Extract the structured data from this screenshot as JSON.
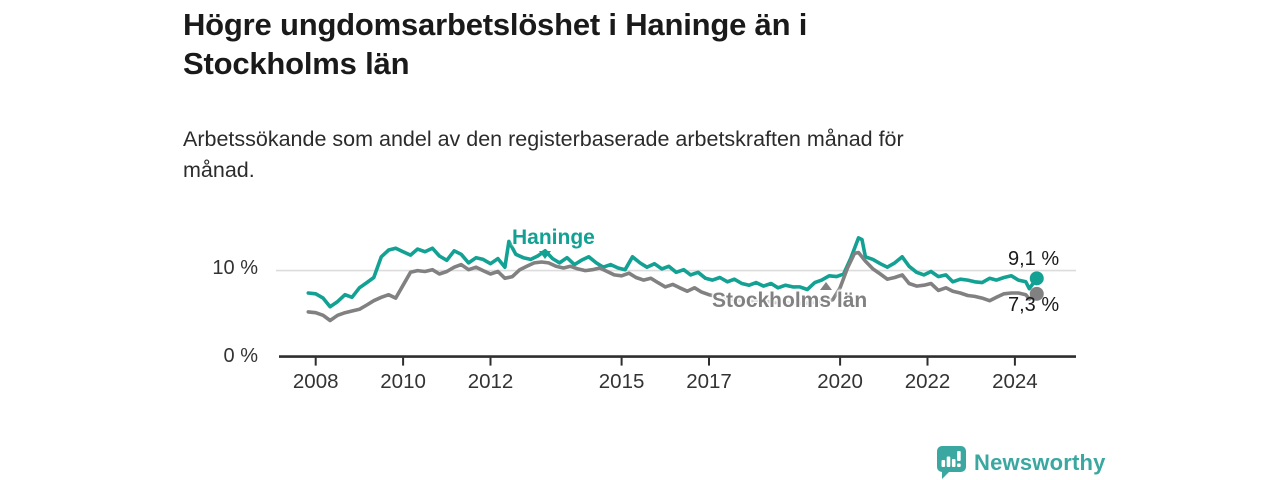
{
  "header": {
    "title_line1": "Högre ungdomsarbetslöshet i Haninge än i",
    "title_line2": "Stockholms län",
    "subtitle_line1": "Arbetssökande som andel av den registerbaserade arbetskraften månad för",
    "subtitle_line2": "månad."
  },
  "colors": {
    "haninge": "#12a192",
    "stockholm": "#818181",
    "grid": "#dcdcdc",
    "axis": "#2e2e2e",
    "tick_text": "#333333",
    "value_text": "#1a1a1a",
    "brand_teal": "#3aa7a0"
  },
  "chart_data": {
    "type": "line",
    "title": "Högre ungdomsarbetslöshet i Haninge än i Stockholms län",
    "subtitle": "Arbetssökande som andel av den registerbaserade arbetskraften månad för månad.",
    "xlabel": "",
    "ylabel": "",
    "unit": "%",
    "grid": "single-horizontal-at-10",
    "legend_position": "inline-labels-on-lines",
    "xlim": [
      2007.2,
      2025.4
    ],
    "ylim": [
      0,
      15.5
    ],
    "x_ticks": [
      2008,
      2010,
      2012,
      2015,
      2017,
      2020,
      2022,
      2024
    ],
    "x_tick_labels": [
      "2008",
      "2010",
      "2012",
      "2015",
      "2017",
      "2020",
      "2022",
      "2024"
    ],
    "y_ticks": [
      {
        "value": 0,
        "label": "0 %"
      },
      {
        "value": 10,
        "label": "10 %"
      }
    ],
    "series": [
      {
        "name": "Haninge",
        "end_label": "9,1 %",
        "end_value": 9.1,
        "points": [
          [
            2007.83,
            7.4
          ],
          [
            2008.0,
            7.3
          ],
          [
            2008.17,
            6.8
          ],
          [
            2008.33,
            5.8
          ],
          [
            2008.5,
            6.4
          ],
          [
            2008.67,
            7.2
          ],
          [
            2008.83,
            6.9
          ],
          [
            2009.0,
            8.0
          ],
          [
            2009.17,
            8.6
          ],
          [
            2009.33,
            9.2
          ],
          [
            2009.5,
            11.6
          ],
          [
            2009.67,
            12.4
          ],
          [
            2009.83,
            12.6
          ],
          [
            2010.0,
            12.2
          ],
          [
            2010.17,
            11.8
          ],
          [
            2010.33,
            12.5
          ],
          [
            2010.5,
            12.2
          ],
          [
            2010.67,
            12.6
          ],
          [
            2010.83,
            11.7
          ],
          [
            2011.0,
            11.2
          ],
          [
            2011.17,
            12.3
          ],
          [
            2011.33,
            11.9
          ],
          [
            2011.5,
            10.9
          ],
          [
            2011.67,
            11.5
          ],
          [
            2011.83,
            11.3
          ],
          [
            2012.0,
            10.8
          ],
          [
            2012.17,
            11.4
          ],
          [
            2012.33,
            10.4
          ],
          [
            2012.42,
            13.4
          ],
          [
            2012.58,
            11.9
          ],
          [
            2012.75,
            11.5
          ],
          [
            2012.92,
            11.3
          ],
          [
            2013.08,
            11.7
          ],
          [
            2013.25,
            12.3
          ],
          [
            2013.42,
            11.4
          ],
          [
            2013.58,
            10.9
          ],
          [
            2013.75,
            11.5
          ],
          [
            2013.92,
            10.7
          ],
          [
            2014.08,
            11.2
          ],
          [
            2014.25,
            11.6
          ],
          [
            2014.42,
            10.9
          ],
          [
            2014.58,
            10.4
          ],
          [
            2014.75,
            10.7
          ],
          [
            2014.92,
            10.3
          ],
          [
            2015.08,
            10.1
          ],
          [
            2015.25,
            11.6
          ],
          [
            2015.42,
            10.9
          ],
          [
            2015.58,
            10.4
          ],
          [
            2015.75,
            10.8
          ],
          [
            2015.92,
            10.2
          ],
          [
            2016.08,
            10.5
          ],
          [
            2016.25,
            9.8
          ],
          [
            2016.42,
            10.1
          ],
          [
            2016.58,
            9.5
          ],
          [
            2016.75,
            9.8
          ],
          [
            2016.92,
            9.1
          ],
          [
            2017.08,
            8.9
          ],
          [
            2017.25,
            9.2
          ],
          [
            2017.42,
            8.7
          ],
          [
            2017.58,
            9.0
          ],
          [
            2017.75,
            8.5
          ],
          [
            2017.92,
            8.3
          ],
          [
            2018.08,
            8.6
          ],
          [
            2018.25,
            8.2
          ],
          [
            2018.42,
            8.5
          ],
          [
            2018.58,
            8.0
          ],
          [
            2018.75,
            8.3
          ],
          [
            2018.92,
            8.1
          ],
          [
            2019.08,
            8.1
          ],
          [
            2019.25,
            7.8
          ],
          [
            2019.42,
            8.6
          ],
          [
            2019.58,
            8.9
          ],
          [
            2019.75,
            9.4
          ],
          [
            2019.92,
            9.3
          ],
          [
            2020.08,
            9.6
          ],
          [
            2020.25,
            11.5
          ],
          [
            2020.42,
            13.8
          ],
          [
            2020.5,
            13.6
          ],
          [
            2020.58,
            11.6
          ],
          [
            2020.75,
            11.3
          ],
          [
            2020.92,
            10.8
          ],
          [
            2021.08,
            10.4
          ],
          [
            2021.25,
            10.9
          ],
          [
            2021.42,
            11.6
          ],
          [
            2021.58,
            10.5
          ],
          [
            2021.75,
            9.8
          ],
          [
            2021.92,
            9.5
          ],
          [
            2022.08,
            9.9
          ],
          [
            2022.25,
            9.3
          ],
          [
            2022.42,
            9.5
          ],
          [
            2022.58,
            8.7
          ],
          [
            2022.75,
            9.0
          ],
          [
            2022.92,
            8.9
          ],
          [
            2023.08,
            8.7
          ],
          [
            2023.25,
            8.6
          ],
          [
            2023.42,
            9.1
          ],
          [
            2023.58,
            8.9
          ],
          [
            2023.75,
            9.2
          ],
          [
            2023.92,
            9.4
          ],
          [
            2024.08,
            8.9
          ],
          [
            2024.25,
            8.7
          ],
          [
            2024.33,
            7.9
          ],
          [
            2024.5,
            9.1
          ]
        ]
      },
      {
        "name": "Stockholms län",
        "end_label": "7,3 %",
        "end_value": 7.3,
        "points": [
          [
            2007.83,
            5.2
          ],
          [
            2008.0,
            5.1
          ],
          [
            2008.17,
            4.8
          ],
          [
            2008.33,
            4.2
          ],
          [
            2008.5,
            4.8
          ],
          [
            2008.67,
            5.1
          ],
          [
            2008.83,
            5.3
          ],
          [
            2009.0,
            5.5
          ],
          [
            2009.17,
            6.0
          ],
          [
            2009.33,
            6.5
          ],
          [
            2009.5,
            6.9
          ],
          [
            2009.67,
            7.2
          ],
          [
            2009.83,
            6.8
          ],
          [
            2010.0,
            8.3
          ],
          [
            2010.17,
            9.8
          ],
          [
            2010.33,
            10.0
          ],
          [
            2010.5,
            9.9
          ],
          [
            2010.67,
            10.1
          ],
          [
            2010.83,
            9.6
          ],
          [
            2011.0,
            9.9
          ],
          [
            2011.17,
            10.4
          ],
          [
            2011.33,
            10.7
          ],
          [
            2011.5,
            10.1
          ],
          [
            2011.67,
            10.4
          ],
          [
            2011.83,
            10.0
          ],
          [
            2012.0,
            9.6
          ],
          [
            2012.17,
            9.9
          ],
          [
            2012.33,
            9.1
          ],
          [
            2012.5,
            9.3
          ],
          [
            2012.67,
            10.1
          ],
          [
            2012.83,
            10.5
          ],
          [
            2013.0,
            10.9
          ],
          [
            2013.17,
            11.0
          ],
          [
            2013.33,
            10.9
          ],
          [
            2013.5,
            10.5
          ],
          [
            2013.67,
            10.3
          ],
          [
            2013.83,
            10.5
          ],
          [
            2014.0,
            10.2
          ],
          [
            2014.17,
            10.0
          ],
          [
            2014.33,
            10.1
          ],
          [
            2014.5,
            10.3
          ],
          [
            2014.67,
            9.9
          ],
          [
            2014.83,
            9.5
          ],
          [
            2015.0,
            9.4
          ],
          [
            2015.17,
            9.7
          ],
          [
            2015.33,
            9.2
          ],
          [
            2015.5,
            8.9
          ],
          [
            2015.67,
            9.1
          ],
          [
            2015.83,
            8.6
          ],
          [
            2016.0,
            8.1
          ],
          [
            2016.17,
            8.4
          ],
          [
            2016.33,
            8.0
          ],
          [
            2016.5,
            7.6
          ],
          [
            2016.67,
            8.0
          ],
          [
            2016.83,
            7.5
          ],
          [
            2017.0,
            7.2
          ],
          [
            2017.17,
            7.0
          ],
          [
            2017.33,
            6.8
          ],
          [
            2017.5,
            6.7
          ],
          [
            2017.67,
            6.6
          ],
          [
            2017.83,
            6.5
          ],
          [
            2018.0,
            6.5
          ],
          [
            2018.17,
            6.4
          ],
          [
            2018.33,
            6.4
          ],
          [
            2018.5,
            6.3
          ],
          [
            2018.67,
            6.3
          ],
          [
            2018.83,
            6.2
          ],
          [
            2019.0,
            6.2
          ],
          [
            2019.17,
            6.2
          ],
          [
            2019.33,
            6.3
          ],
          [
            2019.5,
            6.3
          ],
          [
            2019.67,
            6.4
          ],
          [
            2019.83,
            6.6
          ],
          [
            2020.0,
            8.0
          ],
          [
            2020.17,
            10.3
          ],
          [
            2020.33,
            12.0
          ],
          [
            2020.42,
            12.1
          ],
          [
            2020.58,
            11.1
          ],
          [
            2020.75,
            10.2
          ],
          [
            2020.92,
            9.6
          ],
          [
            2021.08,
            9.0
          ],
          [
            2021.25,
            9.2
          ],
          [
            2021.42,
            9.5
          ],
          [
            2021.58,
            8.5
          ],
          [
            2021.75,
            8.2
          ],
          [
            2021.92,
            8.3
          ],
          [
            2022.08,
            8.5
          ],
          [
            2022.25,
            7.7
          ],
          [
            2022.42,
            8.0
          ],
          [
            2022.58,
            7.6
          ],
          [
            2022.75,
            7.4
          ],
          [
            2022.92,
            7.1
          ],
          [
            2023.08,
            7.0
          ],
          [
            2023.25,
            6.8
          ],
          [
            2023.42,
            6.5
          ],
          [
            2023.58,
            6.9
          ],
          [
            2023.75,
            7.3
          ],
          [
            2023.92,
            7.4
          ],
          [
            2024.08,
            7.4
          ],
          [
            2024.25,
            7.2
          ],
          [
            2024.33,
            6.7
          ],
          [
            2024.5,
            7.3
          ]
        ]
      }
    ]
  },
  "branding": {
    "logo_text": "Newsworthy"
  }
}
